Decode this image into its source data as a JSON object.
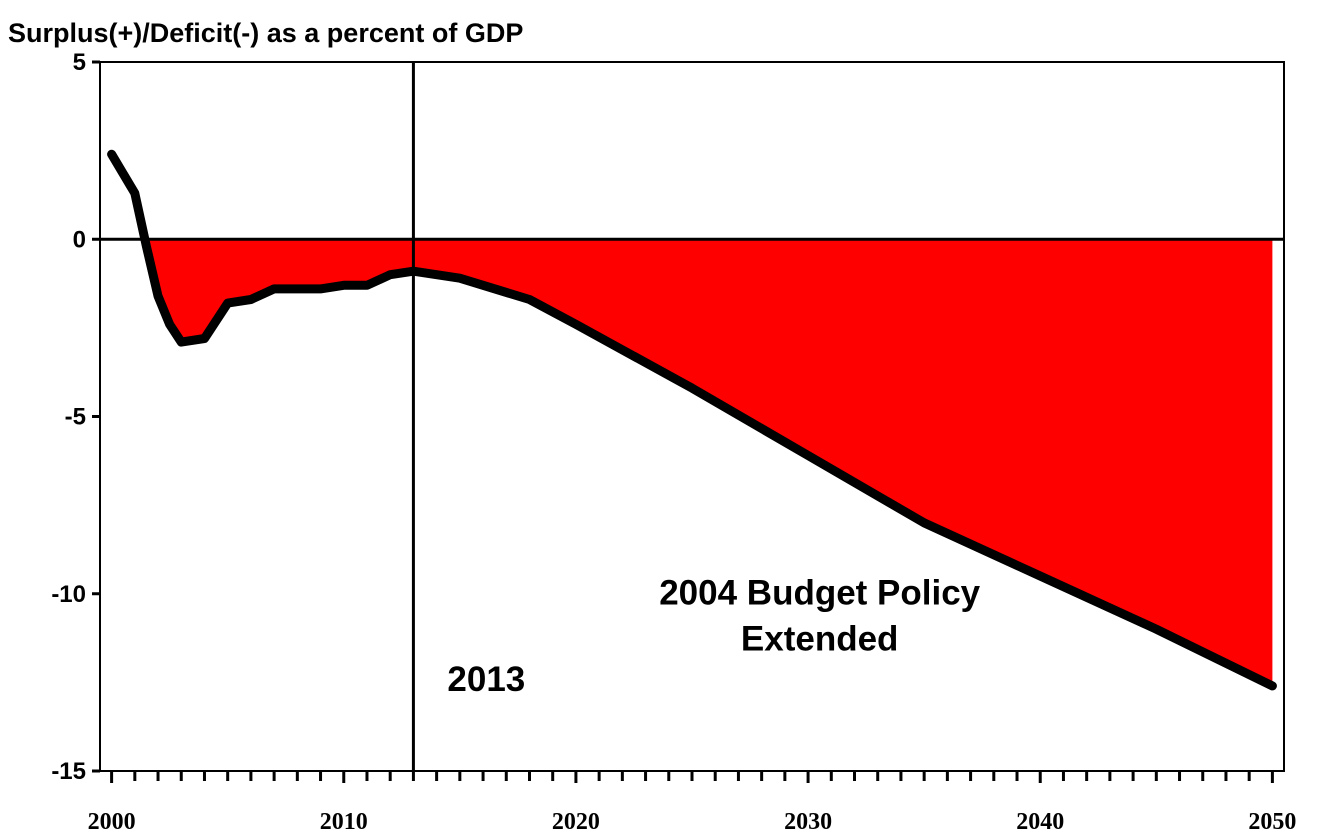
{
  "chart_data": {
    "type": "area",
    "title": "",
    "ylabel": "Surplus(+)/Deficit(-) as a percent of GDP",
    "xlabel": "",
    "xlim": [
      1999.5,
      2050.5
    ],
    "ylim": [
      -15,
      5
    ],
    "yticks": [
      "5",
      "0",
      "-5",
      "-10",
      "-15"
    ],
    "xticks": [
      "2000",
      "2010",
      "2020",
      "2030",
      "2040",
      "2050"
    ],
    "grid": false,
    "fill_color": "#ff0000",
    "line_color": "#000000",
    "reference_line": {
      "axis": "y",
      "value": 0
    },
    "vertical_marker": {
      "x": 2013,
      "label": "2013"
    },
    "annotations": [
      {
        "lines": [
          "2004 Budget Policy",
          "Extended"
        ],
        "x": 2030.5,
        "y": -10.3
      }
    ],
    "series": [
      {
        "x": [
          2000,
          2001,
          2001.5,
          2002,
          2002.5,
          2003,
          2004,
          2005,
          2006,
          2007,
          2008,
          2009,
          2010,
          2011,
          2012,
          2013,
          2015,
          2018,
          2020,
          2025,
          2030,
          2035,
          2040,
          2045,
          2050
        ],
        "values": [
          2.4,
          1.3,
          -0.2,
          -1.6,
          -2.4,
          -2.9,
          -2.8,
          -1.8,
          -1.7,
          -1.4,
          -1.4,
          -1.4,
          -1.3,
          -1.3,
          -1.0,
          -0.9,
          -1.1,
          -1.7,
          -2.4,
          -4.2,
          -6.1,
          -8.0,
          -9.5,
          -11.0,
          -12.6
        ]
      }
    ]
  }
}
